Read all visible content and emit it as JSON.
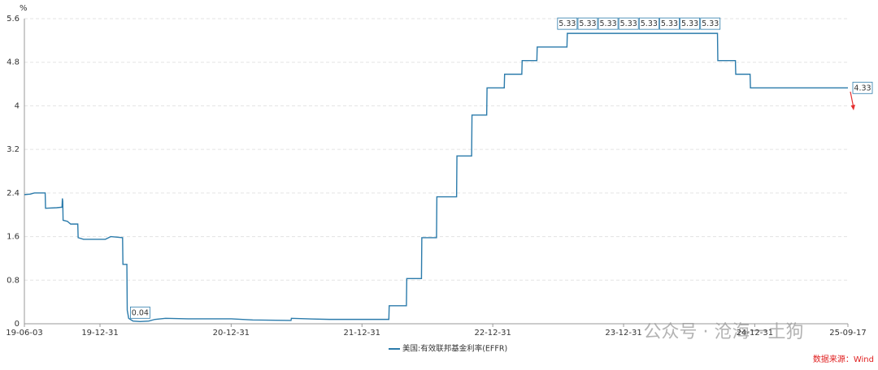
{
  "chart_data": {
    "type": "line",
    "unit": "%",
    "x": [
      "19-06-03",
      "19-06-20",
      "19-07-01",
      "19-07-31",
      "19-08-01",
      "19-09-01",
      "19-09-16",
      "19-09-17",
      "19-09-18",
      "19-09-19",
      "19-10-01",
      "19-10-10",
      "19-10-30",
      "19-10-31",
      "19-11-15",
      "20-01-15",
      "20-01-30",
      "20-03-03",
      "20-03-04",
      "20-03-15",
      "20-03-16",
      "20-03-20",
      "20-04-01",
      "20-04-21",
      "20-05-15",
      "20-06-01",
      "20-07-01",
      "20-09-01",
      "20-12-31",
      "21-03-01",
      "21-06-16",
      "21-06-17",
      "21-08-01",
      "21-10-01",
      "22-03-16",
      "22-03-17",
      "22-05-04",
      "22-05-05",
      "22-06-15",
      "22-06-16",
      "22-07-27",
      "22-07-28",
      "22-09-21",
      "22-09-22",
      "22-11-02",
      "22-11-03",
      "22-12-14",
      "22-12-15",
      "23-02-01",
      "23-02-02",
      "23-03-22",
      "23-03-23",
      "23-05-03",
      "23-05-04",
      "23-07-26",
      "23-07-27",
      "23-09-22",
      "23-11-18",
      "24-01-14",
      "24-03-11",
      "24-05-07",
      "24-07-03",
      "24-08-29",
      "24-09-18",
      "24-09-19",
      "24-11-07",
      "24-11-08",
      "24-12-18",
      "24-12-19",
      "25-09-17"
    ],
    "series": [
      {
        "name": "美国:有效联邦基金利率(EFFR)",
        "color": "#2b7bab",
        "values": [
          2.37,
          2.38,
          2.4,
          2.4,
          2.12,
          2.13,
          2.14,
          2.3,
          2.25,
          1.9,
          1.88,
          1.83,
          1.83,
          1.58,
          1.55,
          1.55,
          1.6,
          1.58,
          1.09,
          1.09,
          0.25,
          0.1,
          0.05,
          0.04,
          0.05,
          0.08,
          0.1,
          0.09,
          0.09,
          0.07,
          0.06,
          0.1,
          0.09,
          0.08,
          0.08,
          0.33,
          0.33,
          0.83,
          0.83,
          1.58,
          1.58,
          2.33,
          2.33,
          3.08,
          3.08,
          3.83,
          3.83,
          4.33,
          4.33,
          4.58,
          4.58,
          4.83,
          4.83,
          5.08,
          5.08,
          5.33,
          5.33,
          5.33,
          5.33,
          5.33,
          5.33,
          5.33,
          5.33,
          5.33,
          4.83,
          4.83,
          4.58,
          4.58,
          4.33,
          4.33
        ],
        "value_labels": [
          null,
          null,
          null,
          null,
          null,
          null,
          null,
          null,
          null,
          null,
          null,
          null,
          null,
          null,
          null,
          null,
          null,
          null,
          null,
          null,
          null,
          null,
          null,
          "0.04",
          null,
          null,
          null,
          null,
          null,
          null,
          null,
          null,
          null,
          null,
          null,
          null,
          null,
          null,
          null,
          null,
          null,
          null,
          null,
          null,
          null,
          null,
          null,
          null,
          null,
          null,
          null,
          null,
          null,
          null,
          null,
          "5.33",
          "5.33",
          "5.33",
          "5.33",
          "5.33",
          "5.33",
          "5.33",
          "5.33",
          null,
          null,
          null,
          null,
          null,
          null,
          "4.33"
        ]
      }
    ],
    "xlim": [
      "19-06-03",
      "25-09-17"
    ],
    "xticks": [
      "19-06-03",
      "19-12-31",
      "20-12-31",
      "21-12-31",
      "22-12-31",
      "23-12-31",
      "24-12-31",
      "25-09-17"
    ],
    "ylim": [
      0,
      5.6
    ],
    "yticks": [
      0,
      0.8,
      1.6,
      2.4,
      3.2,
      4,
      4.8,
      5.6
    ],
    "grid": true,
    "legend": "bottom",
    "source": "数据来源：Wind",
    "watermark": "公众号 · 沧海一土狗"
  }
}
